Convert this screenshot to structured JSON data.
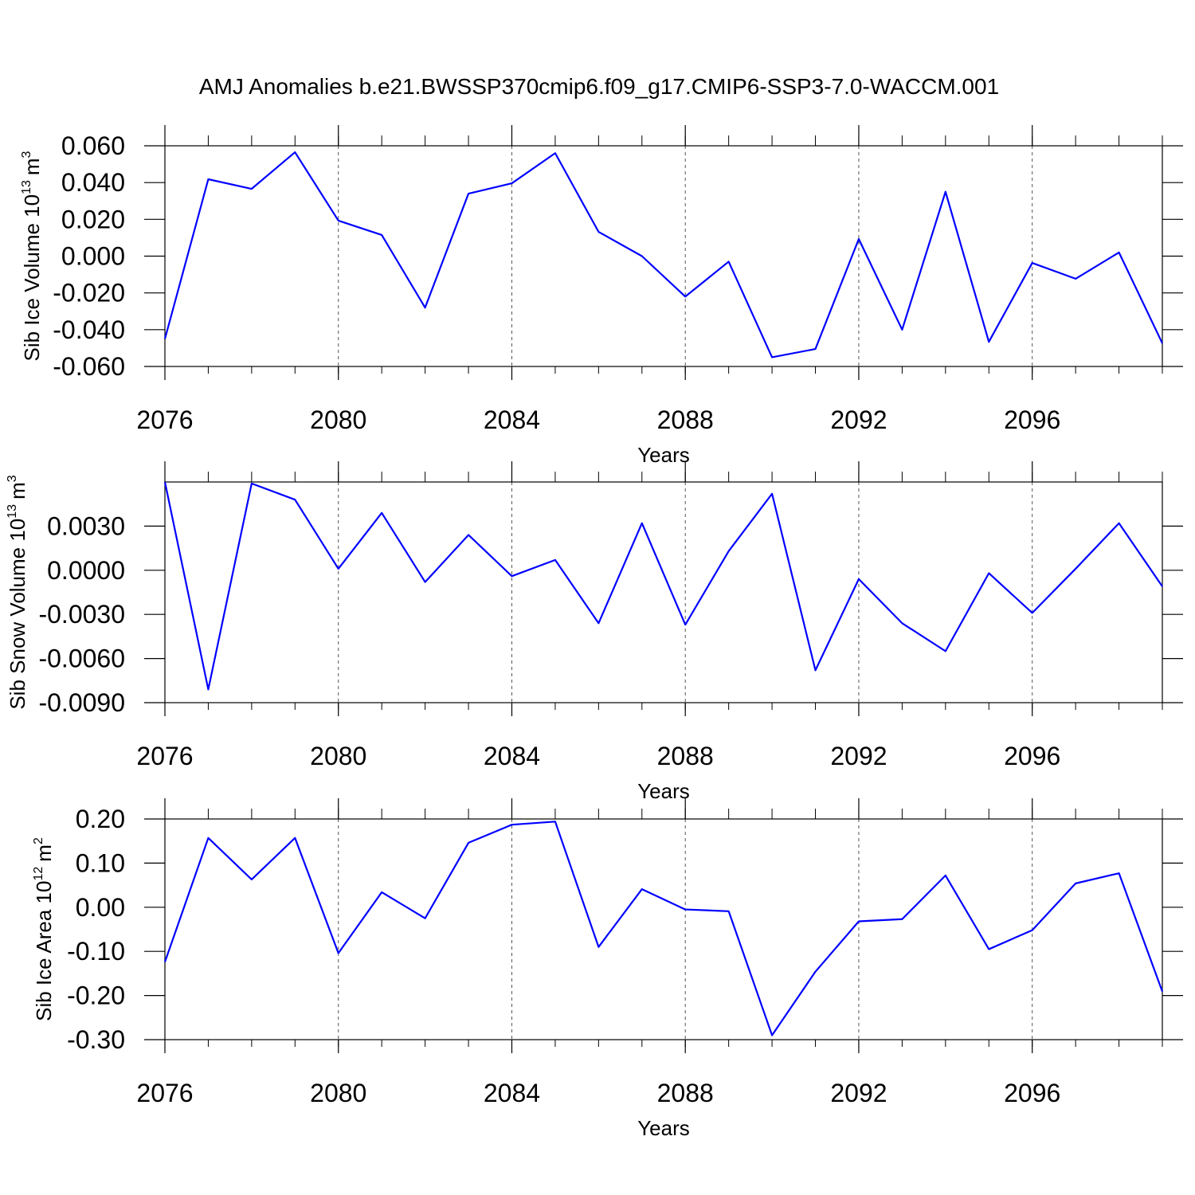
{
  "chart_data": [
    {
      "type": "line",
      "title": "AMJ Anomalies b.e21.BWSSP370cmip6.f09_g17.CMIP6-SSP3-7.0-WACCM.001",
      "ylabel_parts": [
        "Sib Ice Volume 10",
        "13",
        "m",
        "3"
      ],
      "xlabel": "Years",
      "x": [
        2076,
        2077,
        2078,
        2079,
        2080,
        2081,
        2082,
        2083,
        2084,
        2085,
        2086,
        2087,
        2088,
        2089,
        2090,
        2091,
        2092,
        2093,
        2094,
        2095,
        2096,
        2097,
        2098,
        2099
      ],
      "values": [
        -0.045,
        0.0418,
        0.0366,
        0.0565,
        0.0193,
        0.0115,
        -0.028,
        0.034,
        0.0396,
        0.056,
        0.0132,
        0.0,
        -0.022,
        -0.003,
        -0.055,
        -0.0505,
        0.0093,
        -0.04,
        0.035,
        -0.0466,
        -0.0037,
        -0.0123,
        0.002,
        -0.0474
      ],
      "color": "#0000ff",
      "xlim": [
        2076,
        2099
      ],
      "xticks": [
        2076,
        2080,
        2084,
        2088,
        2092,
        2096
      ],
      "ylim": [
        -0.06,
        0.06
      ],
      "yticks": [
        {
          "value": 0.06,
          "label": "0.060"
        },
        {
          "value": 0.04,
          "label": "0.040"
        },
        {
          "value": 0.02,
          "label": "0.020"
        },
        {
          "value": 0,
          "label": "0.000"
        },
        {
          "value": -0.02,
          "label": "-0.020"
        },
        {
          "value": -0.04,
          "label": "-0.040"
        },
        {
          "value": -0.06,
          "label": "-0.060"
        }
      ],
      "xgrid": true
    },
    {
      "type": "line",
      "ylabel_parts": [
        "Sib Snow Volume 10",
        "13",
        "m",
        "3"
      ],
      "xlabel": "Years",
      "x": [
        2076,
        2077,
        2078,
        2079,
        2080,
        2081,
        2082,
        2083,
        2084,
        2085,
        2086,
        2087,
        2088,
        2089,
        2090,
        2091,
        2092,
        2093,
        2094,
        2095,
        2096,
        2097,
        2098,
        2099
      ],
      "values": [
        0.006,
        -0.0081,
        0.0059,
        0.0048,
        0.0001,
        0.0039,
        -0.0008,
        0.0024,
        -0.0004,
        0.0007,
        -0.0036,
        0.0032,
        -0.0037,
        0.0013,
        0.0052,
        -0.0068,
        -0.0006,
        -0.0036,
        -0.0055,
        -0.0002,
        -0.0029,
        0.0001,
        0.0032,
        -0.0011
      ],
      "color": "#0000ff",
      "xlim": [
        2076,
        2099
      ],
      "xticks": [
        2076,
        2080,
        2084,
        2088,
        2092,
        2096
      ],
      "ylim": [
        -0.009,
        0.006
      ],
      "yticks": [
        {
          "value": 0.003,
          "label": "0.0030"
        },
        {
          "value": 0,
          "label": "0.0000"
        },
        {
          "value": -0.003,
          "label": "-0.0030"
        },
        {
          "value": -0.006,
          "label": "-0.0060"
        },
        {
          "value": -0.009,
          "label": "-0.0090"
        }
      ],
      "xgrid": true
    },
    {
      "type": "line",
      "ylabel_parts": [
        "Sib Ice Area 10",
        "12",
        "m",
        "2"
      ],
      "xlabel": "Years",
      "x": [
        2076,
        2077,
        2078,
        2079,
        2080,
        2081,
        2082,
        2083,
        2084,
        2085,
        2086,
        2087,
        2088,
        2089,
        2090,
        2091,
        2092,
        2093,
        2094,
        2095,
        2096,
        2097,
        2098,
        2099
      ],
      "values": [
        -0.124,
        0.157,
        0.063,
        0.157,
        -0.104,
        0.034,
        -0.025,
        0.146,
        0.187,
        0.194,
        -0.09,
        0.041,
        -0.005,
        -0.009,
        -0.29,
        -0.146,
        -0.032,
        -0.027,
        0.072,
        -0.095,
        -0.052,
        0.054,
        0.077,
        -0.191
      ],
      "color": "#0000ff",
      "xlim": [
        2076,
        2099
      ],
      "xticks": [
        2076,
        2080,
        2084,
        2088,
        2092,
        2096
      ],
      "ylim": [
        -0.3,
        0.2
      ],
      "yticks": [
        {
          "value": 0.2,
          "label": "0.20"
        },
        {
          "value": 0.1,
          "label": "0.10"
        },
        {
          "value": 0,
          "label": "0.00"
        },
        {
          "value": -0.1,
          "label": "-0.10"
        },
        {
          "value": -0.2,
          "label": "-0.20"
        },
        {
          "value": -0.3,
          "label": "-0.30"
        }
      ],
      "xgrid": true
    }
  ]
}
